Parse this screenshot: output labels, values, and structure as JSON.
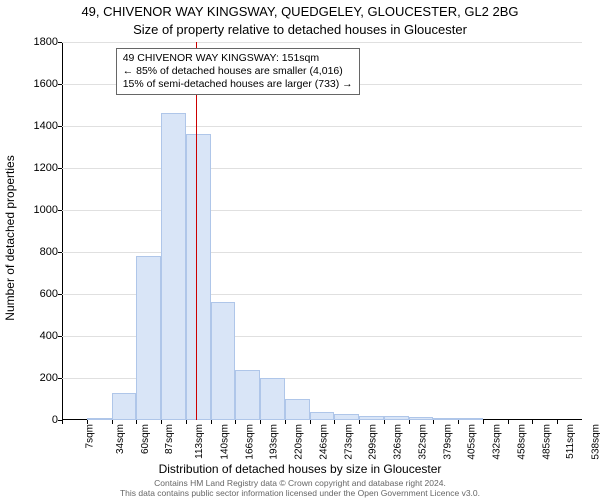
{
  "title": {
    "line1": "49, CHIVENOR WAY KINGSWAY, QUEDGELEY, GLOUCESTER, GL2 2BG",
    "line2": "Size of property relative to detached houses in Gloucester"
  },
  "chart": {
    "type": "histogram",
    "ylabel": "Number of detached properties",
    "xlabel": "Distribution of detached houses by size in Gloucester",
    "y": {
      "min": 0,
      "max": 1800,
      "step": 200,
      "ticks": [
        0,
        200,
        400,
        600,
        800,
        1000,
        1200,
        1400,
        1600,
        1800
      ]
    },
    "x": {
      "labels": [
        "7sqm",
        "34sqm",
        "60sqm",
        "87sqm",
        "113sqm",
        "140sqm",
        "166sqm",
        "193sqm",
        "220sqm",
        "246sqm",
        "273sqm",
        "299sqm",
        "326sqm",
        "352sqm",
        "379sqm",
        "405sqm",
        "432sqm",
        "458sqm",
        "485sqm",
        "511sqm",
        "538sqm"
      ]
    },
    "bars": {
      "values": [
        0,
        10,
        130,
        780,
        1460,
        1360,
        560,
        240,
        200,
        100,
        40,
        30,
        20,
        20,
        15,
        10,
        5,
        0,
        0,
        0,
        0
      ],
      "fill": "#d9e5f7",
      "border": "#afc6e9",
      "width_ratio": 1.0
    },
    "marker": {
      "category_index": 5.4,
      "color": "#cc0000"
    },
    "annotation": {
      "line1": "49 CHIVENOR WAY KINGSWAY: 151sqm",
      "line2": "← 85% of detached houses are smaller (4,016)",
      "line3": "15% of semi-detached houses are larger (733) →",
      "border": "#666666",
      "bg": "#ffffff"
    },
    "grid_color": "#e0e0e0",
    "background_color": "#ffffff"
  },
  "footer": {
    "line1": "Contains HM Land Registry data © Crown copyright and database right 2024.",
    "line2": "This data contains public sector information licensed under the Open Government Licence v3.0."
  }
}
